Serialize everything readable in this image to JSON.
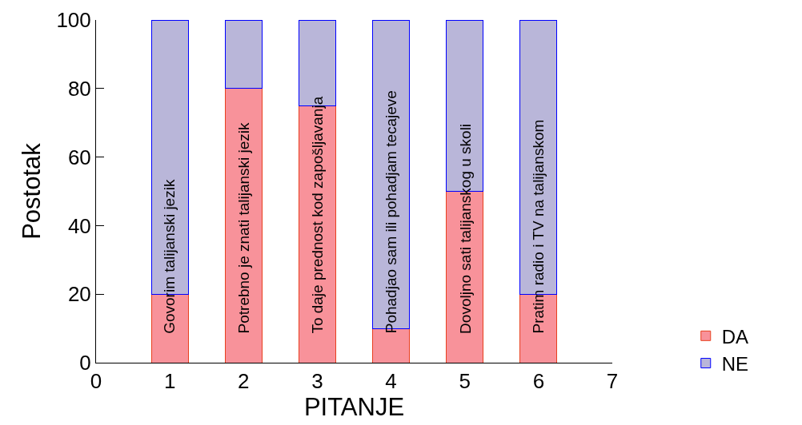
{
  "chart_data": {
    "type": "bar",
    "stacked": true,
    "xlabel": "PITANJE",
    "ylabel": "Postotak",
    "x": [
      1,
      2,
      3,
      4,
      5,
      6
    ],
    "series": [
      {
        "name": "DA",
        "color": "#f8929a",
        "values": [
          20,
          80,
          75,
          10,
          50,
          20
        ]
      },
      {
        "name": "NE",
        "color": "#b9b6d9",
        "values": [
          80,
          20,
          25,
          90,
          50,
          80
        ]
      }
    ],
    "xlim": [
      0,
      7
    ],
    "xticks": [
      0,
      1,
      2,
      3,
      4,
      5,
      6,
      7
    ],
    "ylim": [
      0,
      100
    ],
    "yticks": [
      0,
      20,
      40,
      60,
      80,
      100
    ],
    "grid": false,
    "legend": "bottom right",
    "annotations": [
      "Govorim talijanski jezik",
      "Potrebno je znati talijanski jezik",
      "To daje prednost kod zapošljavanja",
      "Pohadjao sam ili pohadjam tecajeve",
      "Dovoljno sati talijanskog u skoli",
      "Pratim radio i TV na talijanskom"
    ]
  }
}
